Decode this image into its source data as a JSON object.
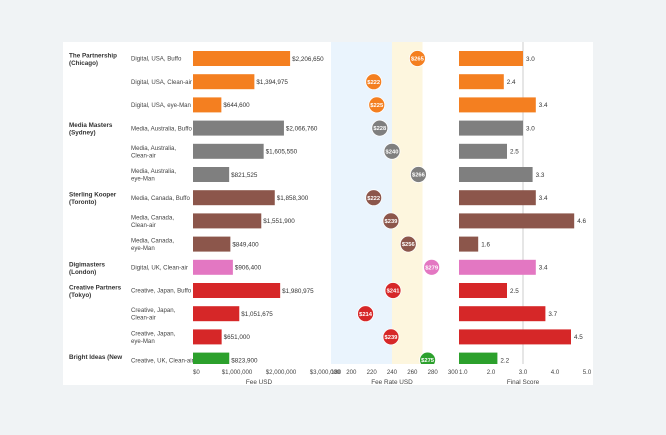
{
  "chart_data": {
    "type": "bar",
    "panels": [
      {
        "name": "fee",
        "axis_label": "Fee USD",
        "ticks": [
          "$0",
          "$1,000,000",
          "$2,000,000",
          "$3,000,000"
        ]
      },
      {
        "name": "rate",
        "axis_label": "Fee Rate USD",
        "ticks": [
          "180",
          "200",
          "220",
          "240",
          "260",
          "280",
          "300"
        ]
      },
      {
        "name": "score",
        "axis_label": "Final Score",
        "ticks": [
          "1.0",
          "2.0",
          "3.0",
          "4.0",
          "5.0"
        ]
      }
    ],
    "fee_xlim": [
      0,
      3000000
    ],
    "rate_xlim": [
      180,
      300
    ],
    "score_xlim": [
      1.0,
      5.0
    ],
    "rate_band_blue": [
      180,
      240
    ],
    "rate_band_yellow": [
      240,
      270
    ],
    "groups": [
      {
        "label_lines": [
          "The Partnership",
          "(Chicago)"
        ],
        "color": "#f47f20",
        "rows": [
          {
            "label": [
              "Digital, USA, Buffo"
            ],
            "fee": 2206650,
            "fee_label": "$2,206,650",
            "rate": 265,
            "rate_label": "$265",
            "score": 3.0,
            "score_label": "3.0"
          },
          {
            "label": [
              "Digital, USA, Clean-air"
            ],
            "fee": 1394975,
            "fee_label": "$1,394,975",
            "rate": 222,
            "rate_label": "$222",
            "score": 2.4,
            "score_label": "2.4"
          },
          {
            "label": [
              "Digital, USA, eye-Man"
            ],
            "fee": 644600,
            "fee_label": "$644,600",
            "rate": 225,
            "rate_label": "$225",
            "score": 3.4,
            "score_label": "3.4"
          }
        ]
      },
      {
        "label_lines": [
          "Media Masters",
          "(Sydney)"
        ],
        "color": "#7f7f7f",
        "rows": [
          {
            "label": [
              "Media, Australia, Buffo"
            ],
            "fee": 2066760,
            "fee_label": "$2,066,760",
            "rate": 228,
            "rate_label": "$228",
            "score": 3.0,
            "score_label": "3.0"
          },
          {
            "label": [
              "Media, Australia,",
              "Clean-air"
            ],
            "fee": 1605550,
            "fee_label": "$1,605,550",
            "rate": 240,
            "rate_label": "$240",
            "score": 2.5,
            "score_label": "2.5"
          },
          {
            "label": [
              "Media, Australia,",
              "eye-Man"
            ],
            "fee": 821525,
            "fee_label": "$821,525",
            "rate": 266,
            "rate_label": "$266",
            "score": 3.3,
            "score_label": "3.3"
          }
        ]
      },
      {
        "label_lines": [
          "Sterling Kooper",
          "(Toronto)"
        ],
        "color": "#8c564b",
        "rows": [
          {
            "label": [
              "Media, Canada, Buffo"
            ],
            "fee": 1858300,
            "fee_label": "$1,858,300",
            "rate": 222,
            "rate_label": "$222",
            "score": 3.4,
            "score_label": "3.4"
          },
          {
            "label": [
              "Media, Canada,",
              "Clean-air"
            ],
            "fee": 1551900,
            "fee_label": "$1,551,900",
            "rate": 239,
            "rate_label": "$239",
            "score": 4.6,
            "score_label": "4.6"
          },
          {
            "label": [
              "Media, Canada,",
              "eye-Man"
            ],
            "fee": 849400,
            "fee_label": "$849,400",
            "rate": 256,
            "rate_label": "$256",
            "score": 1.6,
            "score_label": "1.6"
          }
        ]
      },
      {
        "label_lines": [
          "Digimasters",
          "(London)"
        ],
        "color": "#e377c2",
        "rows": [
          {
            "label": [
              "Digital, UK, Clean-air"
            ],
            "fee": 906400,
            "fee_label": "$906,400",
            "rate": 279,
            "rate_label": "$279",
            "score": 3.4,
            "score_label": "3.4"
          }
        ]
      },
      {
        "label_lines": [
          "Creative Partners",
          "(Tokyo)"
        ],
        "color": "#d62728",
        "rows": [
          {
            "label": [
              "Creative, Japan, Buffo"
            ],
            "fee": 1980975,
            "fee_label": "$1,980,975",
            "rate": 241,
            "rate_label": "$241",
            "score": 2.5,
            "score_label": "2.5"
          },
          {
            "label": [
              "Creative, Japan,",
              "Clean-air"
            ],
            "fee": 1051675,
            "fee_label": "$1,051,675",
            "rate": 214,
            "rate_label": "$214",
            "score": 3.7,
            "score_label": "3.7"
          },
          {
            "label": [
              "Creative, Japan,",
              "eye-Man"
            ],
            "fee": 651000,
            "fee_label": "$651,000",
            "rate": 239,
            "rate_label": "$239",
            "score": 4.5,
            "score_label": "4.5"
          }
        ]
      },
      {
        "label_lines": [
          "Bright Ideas (New"
        ],
        "color": "#2ca02c",
        "rows": [
          {
            "label": [
              "Creative, UK, Clean-air"
            ],
            "fee": 823900,
            "fee_label": "$823,900",
            "rate": 275,
            "rate_label": "$275",
            "score": 2.2,
            "score_label": "2.2"
          }
        ]
      }
    ]
  }
}
